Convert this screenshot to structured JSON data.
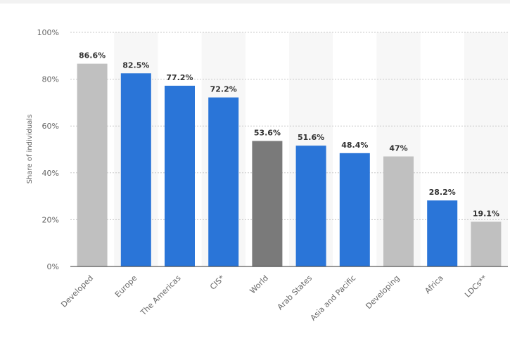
{
  "chart_data": {
    "type": "bar",
    "ylabel": "Share of individuals",
    "ylim": [
      0,
      100
    ],
    "yticks": [
      "0%",
      "20%",
      "40%",
      "60%",
      "80%",
      "100%"
    ],
    "yticks_values": [
      0,
      20,
      40,
      60,
      80,
      100
    ],
    "grid": true,
    "categories": [
      "Developed",
      "Europe",
      "The Americas",
      "CIS*",
      "World",
      "Arab States",
      "Asia and Pacific",
      "Developing",
      "Africa",
      "LDCs**"
    ],
    "values": [
      86.6,
      82.5,
      77.2,
      72.2,
      53.6,
      51.6,
      48.4,
      47,
      28.2,
      19.1
    ],
    "value_labels": [
      "86.6%",
      "82.5%",
      "77.2%",
      "72.2%",
      "53.6%",
      "51.6%",
      "48.4%",
      "47%",
      "28.2%",
      "19.1%"
    ],
    "bar_colors": [
      "#c0c0c0",
      "#2a75d8",
      "#2a75d8",
      "#2a75d8",
      "#7a7a7a",
      "#2a75d8",
      "#2a75d8",
      "#c0c0c0",
      "#2a75d8",
      "#c0c0c0"
    ],
    "column_shading": "#f7f7f7"
  }
}
